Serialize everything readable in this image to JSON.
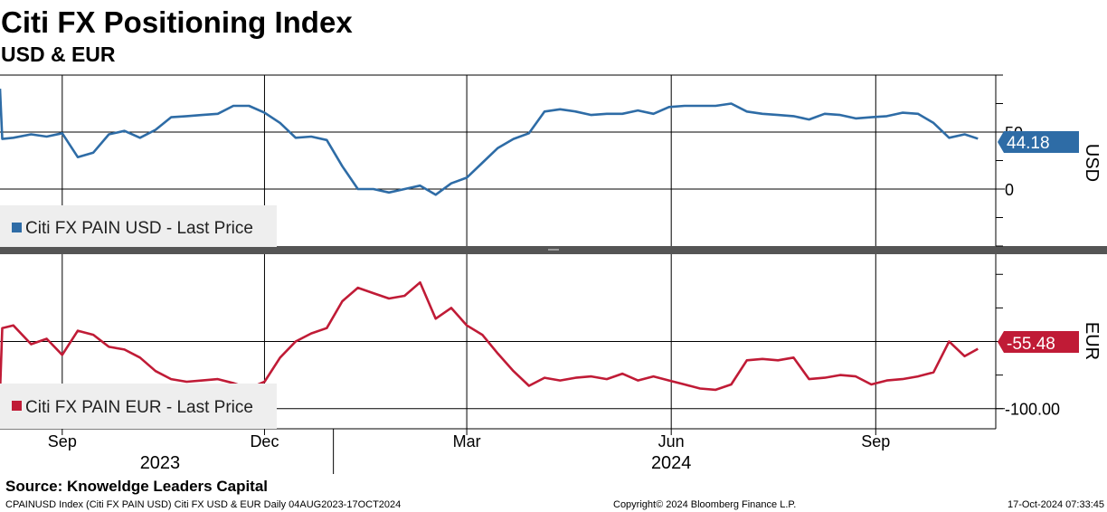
{
  "header": {
    "title": "Citi FX Positioning Index",
    "subtitle": "USD & EUR"
  },
  "footer": {
    "source": "Source: Knoweldge Leaders Capital",
    "index_info": "CPAINUSD Index (Citi FX PAIN USD) Citi FX USD & EUR  Daily 04AUG2023-17OCT2024",
    "copyright": "Copyright© 2024 Bloomberg Finance L.P.",
    "timestamp": "17-Oct-2024 07:33:45"
  },
  "chart_data": {
    "type": "line",
    "x_axis": {
      "month_ticks": [
        {
          "label": "Sep",
          "date": "2023-09-01"
        },
        {
          "label": "Dec",
          "date": "2023-12-01"
        },
        {
          "label": "Mar",
          "date": "2024-03-01"
        },
        {
          "label": "Jun",
          "date": "2024-06-01"
        },
        {
          "label": "Sep",
          "date": "2024-09-01"
        }
      ],
      "year_labels": [
        {
          "label": "2023",
          "date": "2023-10-15"
        },
        {
          "label": "2024",
          "date": "2024-06-01"
        }
      ],
      "range": [
        "2023-08-04",
        "2024-10-17"
      ]
    },
    "panels": [
      {
        "id": "usd",
        "axis_label": "USD",
        "ylim": [
          -50,
          100
        ],
        "ticks": [
          {
            "value": 50,
            "label": "50"
          },
          {
            "value": 0,
            "label": "0"
          }
        ],
        "gridlines": [
          50,
          0
        ],
        "last_value_label": "44.18",
        "last_value": 44.18,
        "color": "#2e6ca6",
        "legend": "Citi FX PAIN USD - Last Price",
        "series": {
          "name": "Citi FX PAIN USD - Last Price",
          "x": [
            "2023-08-04",
            "2023-08-05",
            "2023-08-10",
            "2023-08-18",
            "2023-08-25",
            "2023-09-01",
            "2023-09-08",
            "2023-09-15",
            "2023-09-22",
            "2023-09-29",
            "2023-10-06",
            "2023-10-13",
            "2023-10-20",
            "2023-10-27",
            "2023-11-03",
            "2023-11-10",
            "2023-11-17",
            "2023-11-24",
            "2023-12-01",
            "2023-12-08",
            "2023-12-15",
            "2023-12-22",
            "2023-12-29",
            "2024-01-05",
            "2024-01-12",
            "2024-01-19",
            "2024-01-26",
            "2024-02-02",
            "2024-02-09",
            "2024-02-16",
            "2024-02-23",
            "2024-03-01",
            "2024-03-08",
            "2024-03-15",
            "2024-03-22",
            "2024-03-29",
            "2024-04-05",
            "2024-04-12",
            "2024-04-19",
            "2024-04-26",
            "2024-05-03",
            "2024-05-10",
            "2024-05-17",
            "2024-05-24",
            "2024-05-31",
            "2024-06-07",
            "2024-06-14",
            "2024-06-21",
            "2024-06-28",
            "2024-07-05",
            "2024-07-12",
            "2024-07-19",
            "2024-07-26",
            "2024-08-02",
            "2024-08-09",
            "2024-08-16",
            "2024-08-23",
            "2024-08-30",
            "2024-09-06",
            "2024-09-13",
            "2024-09-20",
            "2024-09-27",
            "2024-10-04",
            "2024-10-11",
            "2024-10-17"
          ],
          "values": [
            88,
            44,
            45,
            48,
            46,
            49,
            28,
            32,
            48,
            51,
            45,
            52,
            63,
            64,
            65,
            66,
            73,
            73,
            67,
            58,
            45,
            46,
            43,
            20,
            0,
            0,
            -3,
            0,
            3,
            -5,
            5,
            10,
            23,
            36,
            44,
            49,
            68,
            70,
            68,
            65,
            66,
            66,
            69,
            66,
            72,
            73,
            73,
            73,
            75,
            68,
            66,
            65,
            64,
            61,
            66,
            65,
            62,
            63,
            64,
            67,
            66,
            58,
            45,
            48,
            44.18
          ]
        }
      },
      {
        "id": "eur",
        "axis_label": "EUR",
        "ylim": [
          -115,
          15
        ],
        "ticks": [
          {
            "value": -50,
            "label": "-50.00"
          },
          {
            "value": -100,
            "label": "-100.00"
          }
        ],
        "gridlines": [
          -50,
          -100
        ],
        "last_value_label": "-55.48",
        "last_value": -55.48,
        "color": "#c01b36",
        "legend": "Citi FX PAIN EUR - Last Price",
        "series": {
          "name": "Citi FX PAIN EUR - Last Price",
          "x": [
            "2023-08-04",
            "2023-08-05",
            "2023-08-10",
            "2023-08-18",
            "2023-08-25",
            "2023-09-01",
            "2023-09-08",
            "2023-09-15",
            "2023-09-22",
            "2023-09-29",
            "2023-10-06",
            "2023-10-13",
            "2023-10-20",
            "2023-10-27",
            "2023-11-03",
            "2023-11-10",
            "2023-11-17",
            "2023-11-24",
            "2023-12-01",
            "2023-12-08",
            "2023-12-15",
            "2023-12-22",
            "2023-12-29",
            "2024-01-05",
            "2024-01-12",
            "2024-01-19",
            "2024-01-26",
            "2024-02-02",
            "2024-02-09",
            "2024-02-16",
            "2024-02-23",
            "2024-03-01",
            "2024-03-08",
            "2024-03-15",
            "2024-03-22",
            "2024-03-29",
            "2024-04-05",
            "2024-04-12",
            "2024-04-19",
            "2024-04-26",
            "2024-05-03",
            "2024-05-10",
            "2024-05-17",
            "2024-05-24",
            "2024-05-31",
            "2024-06-07",
            "2024-06-14",
            "2024-06-21",
            "2024-06-28",
            "2024-07-05",
            "2024-07-12",
            "2024-07-19",
            "2024-07-26",
            "2024-08-02",
            "2024-08-09",
            "2024-08-16",
            "2024-08-23",
            "2024-08-30",
            "2024-09-06",
            "2024-09-13",
            "2024-09-20",
            "2024-09-27",
            "2024-10-04",
            "2024-10-11",
            "2024-10-17"
          ],
          "values": [
            -88,
            -40,
            -38,
            -52,
            -48,
            -60,
            -42,
            -45,
            -54,
            -56,
            -62,
            -72,
            -78,
            -80,
            -79,
            -78,
            -81,
            -85,
            -80,
            -62,
            -50,
            -44,
            -40,
            -20,
            -10,
            -14,
            -18,
            -16,
            -6,
            -33,
            -25,
            -38,
            -45,
            -59,
            -72,
            -83,
            -77,
            -79,
            -77,
            -76,
            -78,
            -74,
            -79,
            -76,
            -79,
            -82,
            -85,
            -86,
            -82,
            -64,
            -63,
            -64,
            -62,
            -78,
            -77,
            -75,
            -76,
            -82,
            -79,
            -78,
            -76,
            -73,
            -50,
            -61,
            -55.48
          ]
        }
      }
    ],
    "grid": true,
    "legend_placement": "bottom-left"
  }
}
